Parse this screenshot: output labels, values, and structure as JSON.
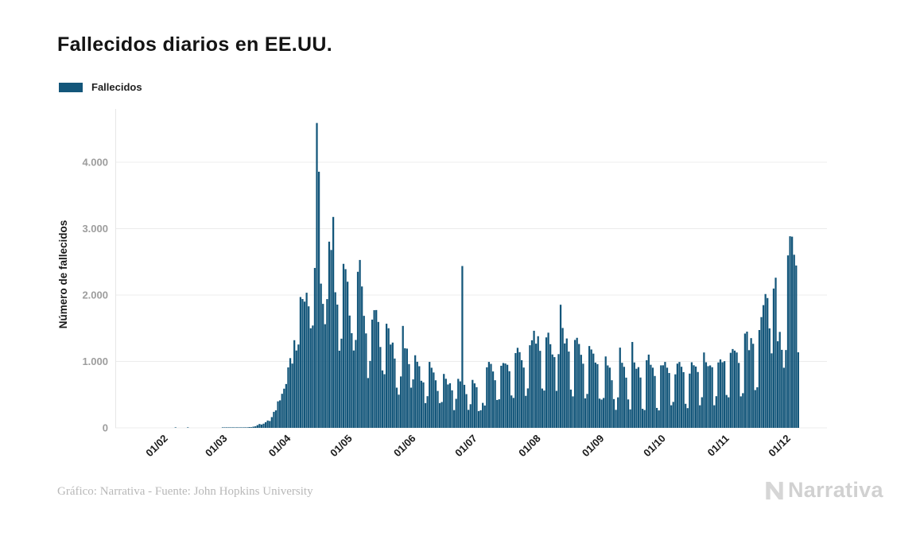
{
  "title": "Fallecidos diarios en EE.UU.",
  "legend": {
    "label": "Fallecidos"
  },
  "footer": {
    "credit": "Gráfico: Narrativa - Fuente: John Hopkins University",
    "brand": "Narrativa"
  },
  "colors": {
    "bar": "#13567a",
    "grid": "#ececec",
    "tick_text": "#9d9d9d",
    "axis_text": "#1a1a1a",
    "footer_text": "#b8b8b8",
    "brand_text": "#d1d1d1"
  },
  "chart_data": {
    "type": "bar",
    "title": "Fallecidos diarios en EE.UU.",
    "xlabel": "",
    "ylabel": "Número de fallecidos",
    "start_date": "2020-01-22",
    "x_tick_labels": [
      "01/02",
      "01/03",
      "01/04",
      "01/05",
      "01/06",
      "01/07",
      "01/08",
      "01/09",
      "01/10",
      "01/11",
      "01/12"
    ],
    "x_tick_day_index": [
      10,
      39,
      70,
      100,
      131,
      161,
      192,
      223,
      253,
      284,
      314
    ],
    "y_ticks": [
      0,
      1000,
      2000,
      3000,
      4000
    ],
    "y_tick_labels": [
      "0",
      "1.000",
      "2.000",
      "3.000",
      "4.000"
    ],
    "ylim": [
      0,
      4800
    ],
    "grid": true,
    "legend_position": "top-left",
    "series": [
      {
        "name": "Fallecidos",
        "values": [
          0,
          0,
          0,
          0,
          0,
          0,
          0,
          0,
          0,
          0,
          0,
          0,
          0,
          0,
          0,
          1,
          0,
          0,
          0,
          0,
          0,
          1,
          0,
          0,
          0,
          0,
          0,
          0,
          0,
          0,
          0,
          0,
          0,
          0,
          0,
          0,
          0,
          0,
          1,
          1,
          1,
          4,
          3,
          2,
          4,
          3,
          5,
          7,
          6,
          8,
          7,
          12,
          10,
          18,
          23,
          41,
          58,
          50,
          63,
          85,
          110,
          103,
          162,
          241,
          264,
          399,
          414,
          513,
          590,
          660,
          910,
          1050,
          968,
          1320,
          1165,
          1255,
          1970,
          1940,
          1901,
          2035,
          1830,
          1500,
          1541,
          2408,
          4591,
          3857,
          2172,
          1867,
          1561,
          1939,
          2804,
          2679,
          3176,
          2042,
          1856,
          1162,
          1343,
          2470,
          2390,
          2201,
          1691,
          1426,
          1165,
          1324,
          2350,
          2528,
          2129,
          1687,
          1422,
          750,
          1008,
          1630,
          1772,
          1774,
          1595,
          1218,
          865,
          808,
          1568,
          1500,
          1255,
          1284,
          1044,
          605,
          500,
          774,
          1535,
          1199,
          1193,
          960,
          605,
          730,
          1093,
          995,
          928,
          709,
          685,
          373,
          477,
          993,
          905,
          834,
          716,
          556,
          373,
          389,
          812,
          739,
          653,
          672,
          565,
          267,
          437,
          738,
          700,
          2437,
          648,
          508,
          271,
          356,
          722,
          670,
          613,
          252,
          265,
          376,
          336,
          912,
          993,
          963,
          849,
          717,
          420,
          430,
          935,
          976,
          969,
          950,
          853,
          488,
          451,
          1126,
          1205,
          1140,
          1019,
          908,
          482,
          594,
          1244,
          1319,
          1462,
          1268,
          1380,
          1160,
          592,
          562,
          1362,
          1433,
          1260,
          1105,
          1065,
          557,
          1110,
          1854,
          1504,
          1271,
          1346,
          1149,
          576,
          474,
          1324,
          1356,
          1263,
          1100,
          966,
          444,
          511,
          1232,
          1180,
          1118,
          983,
          960,
          440,
          426,
          450,
          1075,
          940,
          907,
          717,
          433,
          271,
          459,
          1208,
          980,
          919,
          756,
          428,
          278,
          1293,
          985,
          890,
          914,
          758,
          287,
          268,
          1018,
          1103,
          950,
          906,
          781,
          300,
          263,
          941,
          942,
          993,
          906,
          826,
          340,
          391,
          806,
          967,
          992,
          920,
          839,
          362,
          297,
          817,
          988,
          943,
          923,
          841,
          340,
          461,
          1135,
          988,
          929,
          940,
          913,
          340,
          477,
          985,
          1031,
          988,
          1004,
          495,
          460,
          1130,
          1187,
          1163,
          1135,
          978,
          474,
          522,
          1420,
          1449,
          1170,
          1351,
          1266,
          569,
          611,
          1473,
          1668,
          1848,
          2015,
          1955,
          1498,
          1122,
          2098,
          2261,
          1304,
          1445,
          1175,
          905,
          1172,
          2597,
          2885,
          2879,
          2607,
          2445,
          1138
        ]
      }
    ]
  }
}
